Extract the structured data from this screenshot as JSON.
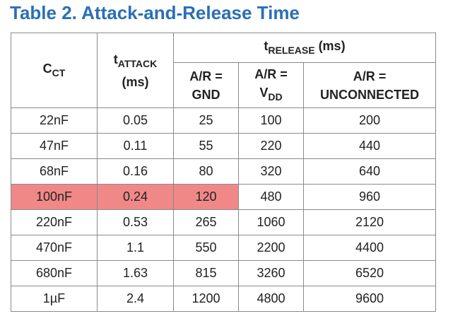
{
  "title": "Table 2. Attack-and-Release Time",
  "headers": {
    "cct_main": "C",
    "cct_sub": "CT",
    "attack_main": "t",
    "attack_sub": "ATTACK",
    "attack_unit": "(ms)",
    "release_main": "t",
    "release_sub": "RELEASE",
    "release_unit": "(ms)",
    "gnd_line1": "A/R =",
    "gnd_line2": "GND",
    "vdd_line1": "A/R =",
    "vdd_main": "V",
    "vdd_sub": "DD",
    "unc_line1": "A/R =",
    "unc_line2": "UNCONNECTED"
  },
  "rows": [
    {
      "cct": "22nF",
      "attack": "0.05",
      "gnd": "25",
      "vdd": "100",
      "unc": "200"
    },
    {
      "cct": "47nF",
      "attack": "0.11",
      "gnd": "55",
      "vdd": "220",
      "unc": "440"
    },
    {
      "cct": "68nF",
      "attack": "0.16",
      "gnd": "80",
      "vdd": "320",
      "unc": "640"
    },
    {
      "cct": "100nF",
      "attack": "0.24",
      "gnd": "120",
      "vdd": "480",
      "unc": "960"
    },
    {
      "cct": "220nF",
      "attack": "0.53",
      "gnd": "265",
      "vdd": "1060",
      "unc": "2120"
    },
    {
      "cct": "470nF",
      "attack": "1.1",
      "gnd": "550",
      "vdd": "2200",
      "unc": "4400"
    },
    {
      "cct": "680nF",
      "attack": "1.63",
      "gnd": "815",
      "vdd": "3260",
      "unc": "6520"
    },
    {
      "cct": "1µF",
      "attack": "2.4",
      "gnd": "1200",
      "vdd": "4800",
      "unc": "9600"
    }
  ],
  "highlight": {
    "row_index": 3,
    "columns": [
      "cct",
      "attack",
      "gnd"
    ],
    "color": "#f08888"
  },
  "colors": {
    "title": "#2a6fb5",
    "border": "#8a8a8a",
    "highlight": "#f08888"
  }
}
